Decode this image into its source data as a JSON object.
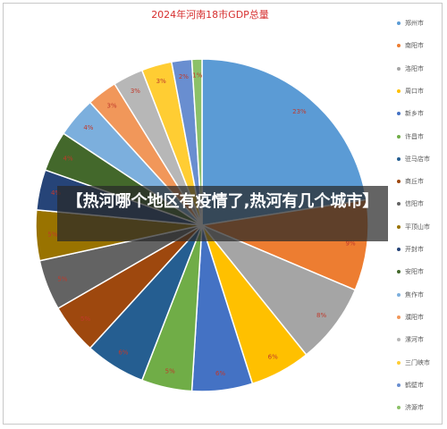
{
  "title": "2024年河南18市GDP总量",
  "overlay_caption": "【热河哪个地区有疫情了,热河有几个城市】",
  "chart_data": {
    "type": "pie",
    "title": "2024年河南18市GDP总量",
    "legend_position": "right",
    "categories": [
      "郑州市",
      "南阳市",
      "洛阳市",
      "周口市",
      "新乡市",
      "许昌市",
      "驻马店市",
      "商丘市",
      "信阳市",
      "平顶山市",
      "开封市",
      "安阳市",
      "焦作市",
      "濮阳市",
      "漯河市",
      "三门峡市",
      "鹤壁市",
      "济源市"
    ],
    "values": [
      23,
      9,
      8,
      6,
      6,
      5,
      6,
      5,
      5,
      5,
      4,
      4,
      4,
      3,
      3,
      3,
      2,
      1
    ],
    "data_labels": [
      "23%",
      "9%",
      "8%",
      "6%",
      "6%",
      "5%",
      "6%",
      "5%",
      "5%",
      "5%",
      "4%",
      "4%",
      "4%",
      "3%",
      "3%",
      "3%",
      "2%",
      "1%"
    ],
    "colors": [
      "#5b9bd5",
      "#ed7d31",
      "#a5a5a5",
      "#ffc000",
      "#4472c4",
      "#70ad47",
      "#255e91",
      "#9e480e",
      "#636363",
      "#997300",
      "#264478",
      "#43682b",
      "#7cafdd",
      "#f1975a",
      "#b7b7b7",
      "#ffcd33",
      "#698ed0",
      "#8cc168"
    ]
  }
}
